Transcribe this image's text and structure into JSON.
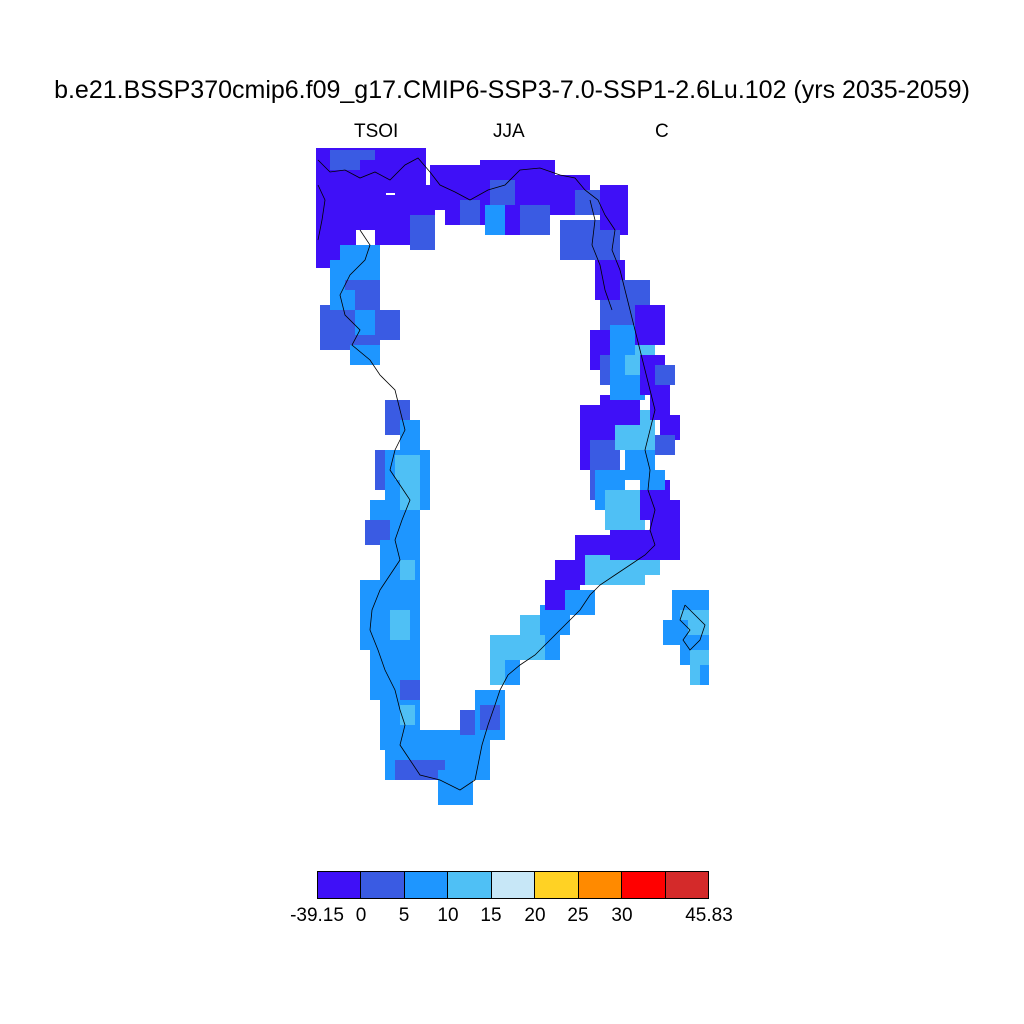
{
  "title": "b.e21.BSSP370cmip6.f09_g17.CMIP6-SSP3-7.0-SSP1-2.6Lu.102 (yrs 2035-2059)",
  "subtitle_left": "TSOI",
  "subtitle_center": "JJA",
  "subtitle_right": "C",
  "colors": {
    "c0": "#3f10f7",
    "c1": "#3a5be3",
    "c2": "#1e96ff",
    "c3": "#4fc0f5",
    "c4": "#c7e7f7",
    "c5": "#ffd224",
    "c6": "#ff8a00",
    "c7": "#ff0000",
    "c8": "#d42a2a"
  },
  "colorbar": {
    "colors": [
      "#3f10f7",
      "#3a5be3",
      "#1e96ff",
      "#4fc0f5",
      "#c7e7f7",
      "#ffd224",
      "#ff8a00",
      "#ff0000",
      "#d42a2a"
    ],
    "labels": [
      "-39.15",
      "0",
      "5",
      "10",
      "15",
      "20",
      "25",
      "30",
      "45.83"
    ]
  }
}
